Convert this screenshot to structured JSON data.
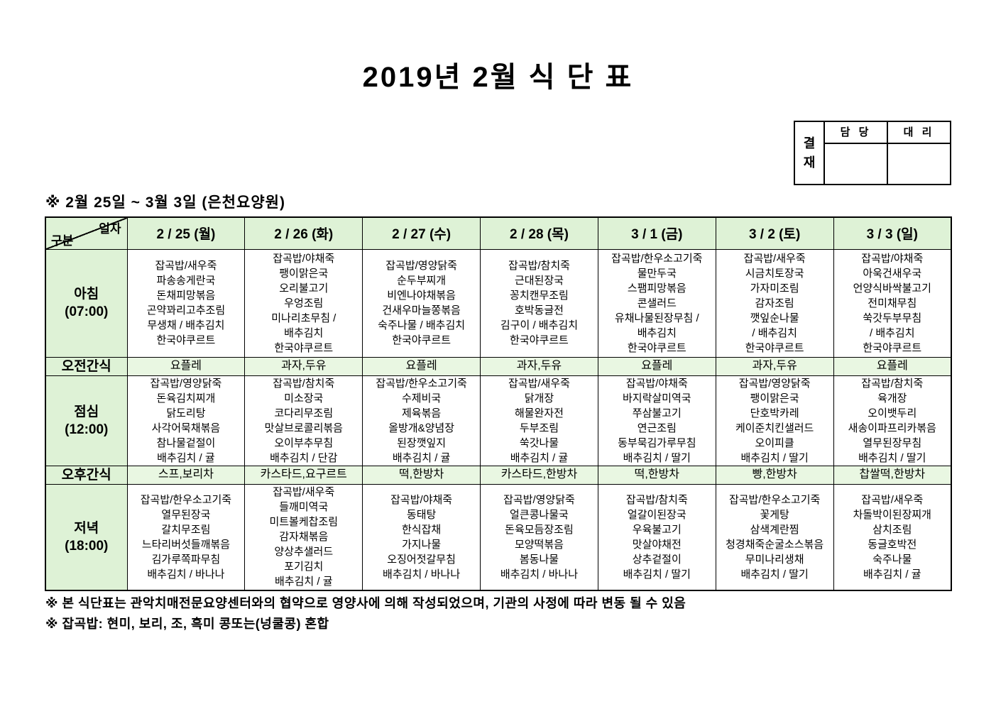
{
  "title": "2019년 2월 식 단 표",
  "approval": {
    "stamp_label": "결재",
    "columns": [
      "담 당",
      "대 리"
    ]
  },
  "subtitle": "※ 2월 25일 ~ 3월 3일 (은천요양원)",
  "table": {
    "corner": {
      "top_label": "일자",
      "bottom_label": "구분"
    },
    "day_headers": [
      "2 / 25 (월)",
      "2 / 26 (화)",
      "2 / 27 (수)",
      "2 / 28 (목)",
      "3 / 1 (금)",
      "3 / 2 (토)",
      "3 / 3 (일)"
    ],
    "rows": [
      {
        "id": "breakfast",
        "kind": "meal",
        "label_lines": [
          "아침",
          "(07:00)"
        ],
        "cells": [
          [
            "잡곡밥/새우죽",
            "파송송게란국",
            "돈채피망볶음",
            "곤약꽈리고추조림",
            "무생채 / 배추김치",
            "한국야쿠르트"
          ],
          [
            "잡곡밥/야채죽",
            "팽이맑은국",
            "오리불고기",
            "우엉조림",
            "미나리초무침 /",
            "배추김치",
            "한국야쿠르트"
          ],
          [
            "잡곡밥/영양닭죽",
            "순두부찌개",
            "비엔나야채볶음",
            "건새우마늘쫑볶음",
            "숙주나물 / 배추김치",
            "한국야쿠르트"
          ],
          [
            "잡곡밥/참치죽",
            "근대된장국",
            "꽁치캔무조림",
            "호박동글전",
            "김구이 / 배추김치",
            "한국야쿠르트"
          ],
          [
            "잡곡밥/한우소고기죽",
            "물만두국",
            "스팸피망볶음",
            "콘샐러드",
            "유채나물된장무침 /",
            "배추김치",
            "한국야쿠르트"
          ],
          [
            "잡곡밥/새우죽",
            "시금치토장국",
            "가자미조림",
            "감자조림",
            "깻잎순나물",
            "/ 배추김치",
            "한국야쿠르트"
          ],
          [
            "잡곡밥/야채죽",
            "아욱건새우국",
            "언양식바싹불고기",
            "전미채무침",
            "쑥갓두부무침",
            "/ 배추김치",
            "한국야쿠르트"
          ]
        ]
      },
      {
        "id": "morning-snack",
        "kind": "snack",
        "label_lines": [
          "오전간식"
        ],
        "cells": [
          [
            "요플레"
          ],
          [
            "과자,두유"
          ],
          [
            "요플레"
          ],
          [
            "과자,두유"
          ],
          [
            "요플레"
          ],
          [
            "과자,두유"
          ],
          [
            "요플레"
          ]
        ]
      },
      {
        "id": "lunch",
        "kind": "meal",
        "label_lines": [
          "점심",
          "(12:00)"
        ],
        "cells": [
          [
            "잡곡밥/영양닭죽",
            "돈육김치찌개",
            "닭도리탕",
            "사각어묵채볶음",
            "참나물겉절이",
            "배추김치 / 귤"
          ],
          [
            "잡곡밥/참치죽",
            "미소장국",
            "코다리무조림",
            "맛살브로콜리볶음",
            "오이부추무침",
            "배추김치 / 단감"
          ],
          [
            "잡곡밥/한우소고기죽",
            "수제비국",
            "제육볶음",
            "올방개&양념장",
            "된장깻잎지",
            "배추김치 / 귤"
          ],
          [
            "잡곡밥/새우죽",
            "닭개장",
            "해물완자전",
            "두부조림",
            "쑥갓나물",
            "배추김치 / 귤"
          ],
          [
            "잡곡밥/야채죽",
            "바지락살미역국",
            "쭈삼불고기",
            "연근조림",
            "동부묵김가루무침",
            "배추김치 / 딸기"
          ],
          [
            "잡곡밥/영양닭죽",
            "팽이맑은국",
            "단호박카레",
            "케이준치킨샐러드",
            "오이피클",
            "배추김치 / 딸기"
          ],
          [
            "잡곡밥/참치죽",
            "육개장",
            "오이뱃두리",
            "새송이파프리카볶음",
            "열무된장무침",
            "배추김치 / 딸기"
          ]
        ]
      },
      {
        "id": "afternoon-snack",
        "kind": "snack",
        "label_lines": [
          "오후간식"
        ],
        "cells": [
          [
            "스프,보리차"
          ],
          [
            "카스타드,요구르트"
          ],
          [
            "떡,한방차"
          ],
          [
            "카스타드,한방차"
          ],
          [
            "떡,한방차"
          ],
          [
            "빵,한방차"
          ],
          [
            "찹쌀떡,한방차"
          ]
        ]
      },
      {
        "id": "dinner",
        "kind": "meal",
        "label_lines": [
          "저녁",
          "(18:00)"
        ],
        "cells": [
          [
            "잡곡밥/한우소고기죽",
            "열무된장국",
            "갈치무조림",
            "느타리버섯들깨볶음",
            "김가루쪽파무침",
            "배추김치 / 바나나"
          ],
          [
            "잡곡밥/새우죽",
            "들깨미역국",
            "미트볼케찹조림",
            "감자채볶음",
            "양상추샐러드",
            "포기김치",
            "배추김치 / 귤"
          ],
          [
            "잡곡밥/야채죽",
            "동태탕",
            "한식잡채",
            "가지나물",
            "오징어젓갈무침",
            "배추김치 / 바나나"
          ],
          [
            "잡곡밥/영양닭죽",
            "얼큰콩나물국",
            "돈육모듬장조림",
            "모양떡볶음",
            "봄동나물",
            "배추김치 / 바나나"
          ],
          [
            "잡곡밥/참치죽",
            "얼갈이된장국",
            "우육불고기",
            "맛살야채전",
            "상추겉절이",
            "배추김치 / 딸기"
          ],
          [
            "잡곡밥/한우소고기죽",
            "꽃게탕",
            "삼색계란찜",
            "청경채죽순굴소스볶음",
            "무미나리생채",
            "배추김치 / 딸기"
          ],
          [
            "잡곡밥/새우죽",
            "차돌박이된장찌개",
            "삼치조림",
            "동글호박전",
            "숙주나물",
            "배추김치 / 귤"
          ]
        ]
      }
    ]
  },
  "footnotes": [
    "※ 본 식단표는 관악치매전문요양센터와의 협약으로 영양사에 의해 작성되었으며, 기관의 사정에 따라 변동 될 수 있음",
    "※ 잡곡밥: 현미, 보리, 조, 흑미 콩또는(넝쿨콩) 혼합"
  ]
}
